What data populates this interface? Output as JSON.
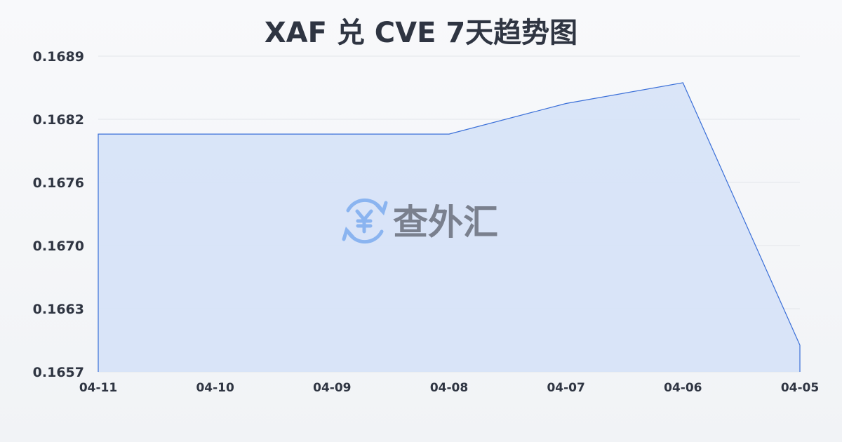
{
  "chart_data": {
    "type": "area",
    "title": "XAF 兑 CVE 7天趋势图",
    "categories": [
      "04-11",
      "04-10",
      "04-09",
      "04-08",
      "04-07",
      "04-06",
      "04-05"
    ],
    "series": [
      {
        "values": [
          0.16811,
          0.16811,
          0.16811,
          0.16811,
          0.16842,
          0.16863,
          0.16597
        ]
      }
    ],
    "yticks": [
      "0.1657",
      "0.1663",
      "0.1670",
      "0.1676",
      "0.1682",
      "0.1689"
    ],
    "ylim": [
      0.1657,
      0.1689
    ],
    "grid": true,
    "colors": {
      "line": "#3a6fd8",
      "fill": "#d6e2f7",
      "grid": "#e3e6ea",
      "text": "#2f3542"
    }
  },
  "watermark": {
    "text": "查外汇",
    "icon": "yen-exchange-icon",
    "icon_color": "#8ab4f0"
  }
}
